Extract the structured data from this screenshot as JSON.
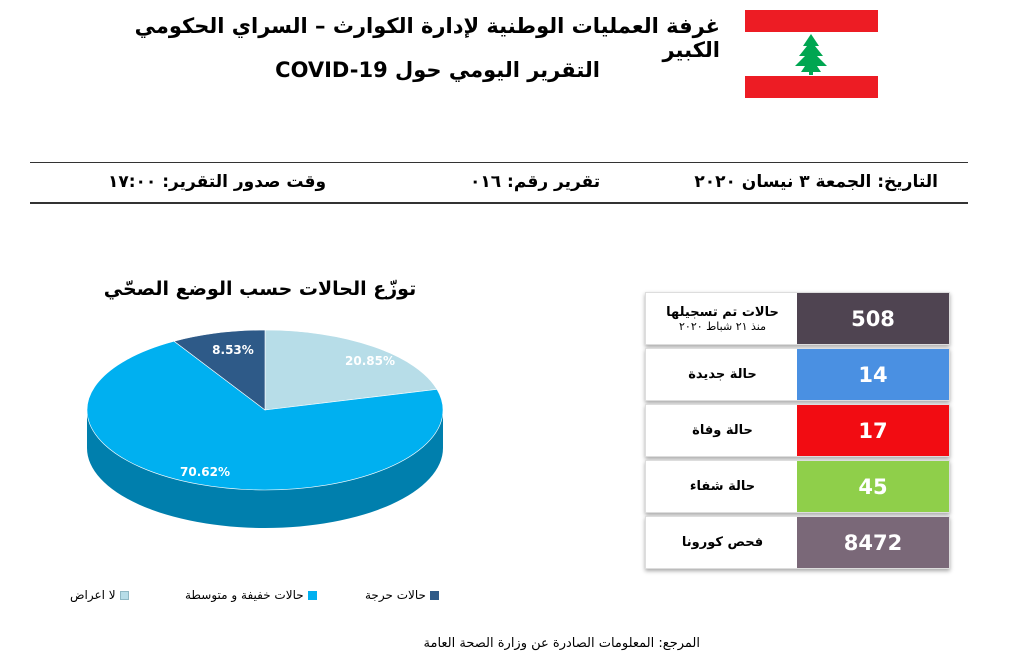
{
  "header": {
    "title_line1": "غرفة العمليات الوطنية لإدارة الكوارث – السراي الحكومي الكبير",
    "title_line2": "التقرير اليومي حول COVID-19"
  },
  "info": {
    "date": "التاريخ: الجمعة ٣ نيسان ٢٠٢٠",
    "report_number": "تقرير رقم: ٠١٦",
    "issue_time": "وقت صدور التقرير: ١٧:٠٠"
  },
  "chart_data": {
    "type": "pie",
    "title": "توزّع الحالات حسب الوضع الصحّي",
    "categories": [
      "لا اعراض",
      "حالات خفيفة و متوسطة",
      "حالات حرجة"
    ],
    "values": [
      20.85,
      70.62,
      8.53
    ],
    "labels": [
      "20.85%",
      "70.62%",
      "8.53%"
    ],
    "colors": [
      "#b7dde8",
      "#00b0f0",
      "#2e5a88"
    ],
    "legend_position": "bottom"
  },
  "stats": [
    {
      "label": "حالات تم تسجيلها",
      "sublabel": "منذ ٢١ شباط ٢٠٢٠",
      "value": "508",
      "color": "#4f4451"
    },
    {
      "label": "حالة جديدة",
      "sublabel": "",
      "value": "14",
      "color": "#4a90e2"
    },
    {
      "label": "حالة وفاة",
      "sublabel": "",
      "value": "17",
      "color": "#f20c12"
    },
    {
      "label": "حالة شفاء",
      "sublabel": "",
      "value": "45",
      "color": "#8fcf4a"
    },
    {
      "label": "فحص كورونا",
      "sublabel": "",
      "value": "8472",
      "color": "#7a6878"
    }
  ],
  "footer": {
    "source": "المرجع: المعلومات الصادرة عن وزارة الصحة العامة"
  }
}
